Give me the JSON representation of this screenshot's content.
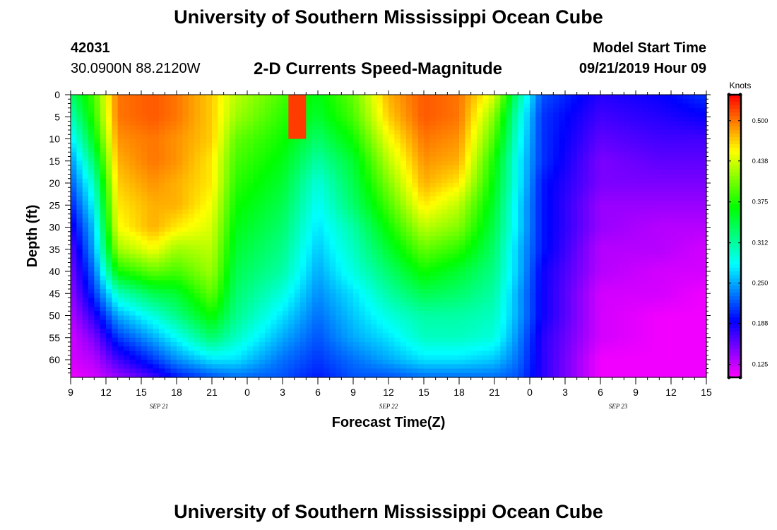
{
  "header": {
    "title": "University of Southern Mississippi Ocean Cube",
    "station_id": "42031",
    "location": "30.0900N 88.2120W",
    "plot_title": "2-D Currents Speed-Magnitude",
    "model_label": "Model Start Time",
    "model_time": "09/21/2019 Hour 09"
  },
  "footer": {
    "title": "University of Southern Mississippi Ocean Cube"
  },
  "chart_data": {
    "type": "heatmap",
    "title": "2-D Currents Speed-Magnitude",
    "xlabel": "Forecast Time(Z)",
    "ylabel": "Depth (ft)",
    "x_ticks": [
      "9",
      "12",
      "15",
      "18",
      "21",
      "0",
      "3",
      "6",
      "9",
      "12",
      "15",
      "18",
      "21",
      "0",
      "3",
      "6",
      "9",
      "12",
      "15"
    ],
    "x_range_hours": [
      0,
      54
    ],
    "date_labels": [
      {
        "text": "SEP 21",
        "hour": 7.5
      },
      {
        "text": "SEP 22",
        "hour": 27
      },
      {
        "text": "SEP 23",
        "hour": 46.5
      }
    ],
    "y_ticks": [
      "0",
      "5",
      "10",
      "15",
      "20",
      "25",
      "30",
      "35",
      "40",
      "45",
      "50",
      "55",
      "60"
    ],
    "y_range_ft": [
      0,
      64
    ],
    "colorbar": {
      "label": "Knots",
      "ticks": [
        "0.500",
        "0.438",
        "0.375",
        "0.312",
        "0.250",
        "0.188",
        "0.125"
      ],
      "tick_values": [
        0.5,
        0.438,
        0.375,
        0.312,
        0.25,
        0.188,
        0.125
      ],
      "range": [
        0.105,
        0.54
      ]
    },
    "surface_speed_by_hour": [
      {
        "hour": 0,
        "knots": 0.33
      },
      {
        "hour": 2,
        "knots": 0.39
      },
      {
        "hour": 4,
        "knots": 0.51
      },
      {
        "hour": 6,
        "knots": 0.51
      },
      {
        "hour": 8,
        "knots": 0.5
      },
      {
        "hour": 10,
        "knots": 0.49
      },
      {
        "hour": 12,
        "knots": 0.47
      },
      {
        "hour": 14,
        "knots": 0.43
      },
      {
        "hour": 16,
        "knots": 0.41
      },
      {
        "hour": 18,
        "knots": 0.39
      },
      {
        "hour": 19.5,
        "knots": 0.52
      },
      {
        "hour": 21,
        "knots": 0.34
      },
      {
        "hour": 24,
        "knots": 0.4
      },
      {
        "hour": 27,
        "knots": 0.49
      },
      {
        "hour": 30,
        "knots": 0.51
      },
      {
        "hour": 33,
        "knots": 0.49
      },
      {
        "hour": 36,
        "knots": 0.41
      },
      {
        "hour": 38,
        "knots": 0.31
      },
      {
        "hour": 40,
        "knots": 0.22
      },
      {
        "hour": 45,
        "knots": 0.18
      },
      {
        "hour": 54,
        "knots": 0.2
      }
    ],
    "profile_anchors": [
      {
        "hour": 0,
        "speeds": [
          0.33,
          0.3,
          0.27,
          0.24,
          0.22,
          0.2,
          0.18,
          0.16,
          0.15,
          0.14,
          0.13,
          0.12,
          0.12,
          0.11
        ]
      },
      {
        "hour": 2,
        "speeds": [
          0.39,
          0.38,
          0.36,
          0.33,
          0.3,
          0.28,
          0.26,
          0.25,
          0.23,
          0.21,
          0.18,
          0.15,
          0.13,
          0.12
        ]
      },
      {
        "hour": 4,
        "speeds": [
          0.5,
          0.5,
          0.49,
          0.48,
          0.47,
          0.46,
          0.45,
          0.42,
          0.37,
          0.3,
          0.25,
          0.21,
          0.17,
          0.14
        ]
      },
      {
        "hour": 7,
        "speeds": [
          0.51,
          0.51,
          0.5,
          0.5,
          0.49,
          0.48,
          0.48,
          0.45,
          0.4,
          0.34,
          0.29,
          0.25,
          0.21,
          0.17
        ]
      },
      {
        "hour": 9,
        "speeds": [
          0.5,
          0.5,
          0.49,
          0.49,
          0.48,
          0.48,
          0.46,
          0.42,
          0.39,
          0.35,
          0.32,
          0.28,
          0.24,
          0.2
        ]
      },
      {
        "hour": 12,
        "speeds": [
          0.47,
          0.47,
          0.47,
          0.46,
          0.46,
          0.45,
          0.44,
          0.43,
          0.42,
          0.4,
          0.37,
          0.33,
          0.27,
          0.22
        ]
      },
      {
        "hour": 14,
        "speeds": [
          0.43,
          0.42,
          0.4,
          0.39,
          0.38,
          0.37,
          0.36,
          0.35,
          0.34,
          0.33,
          0.32,
          0.3,
          0.27,
          0.23
        ]
      },
      {
        "hour": 18,
        "speeds": [
          0.39,
          0.38,
          0.37,
          0.36,
          0.35,
          0.34,
          0.33,
          0.32,
          0.31,
          0.29,
          0.27,
          0.25,
          0.23,
          0.22
        ]
      },
      {
        "hour": 21,
        "speeds": [
          0.36,
          0.35,
          0.33,
          0.31,
          0.29,
          0.28,
          0.27,
          0.26,
          0.25,
          0.24,
          0.23,
          0.22,
          0.21,
          0.2
        ]
      },
      {
        "hour": 24,
        "speeds": [
          0.4,
          0.39,
          0.37,
          0.35,
          0.34,
          0.33,
          0.31,
          0.3,
          0.29,
          0.27,
          0.26,
          0.25,
          0.23,
          0.22
        ]
      },
      {
        "hour": 27,
        "speeds": [
          0.48,
          0.47,
          0.45,
          0.43,
          0.41,
          0.39,
          0.37,
          0.35,
          0.33,
          0.31,
          0.29,
          0.27,
          0.25,
          0.22
        ]
      },
      {
        "hour": 30,
        "speeds": [
          0.51,
          0.51,
          0.5,
          0.49,
          0.48,
          0.46,
          0.43,
          0.4,
          0.37,
          0.34,
          0.31,
          0.3,
          0.27,
          0.23
        ]
      },
      {
        "hour": 33,
        "speeds": [
          0.5,
          0.5,
          0.49,
          0.48,
          0.46,
          0.43,
          0.41,
          0.38,
          0.35,
          0.33,
          0.31,
          0.3,
          0.27,
          0.23
        ]
      },
      {
        "hour": 36,
        "speeds": [
          0.44,
          0.41,
          0.39,
          0.37,
          0.36,
          0.35,
          0.34,
          0.33,
          0.32,
          0.31,
          0.3,
          0.29,
          0.26,
          0.23
        ]
      },
      {
        "hour": 38,
        "speeds": [
          0.32,
          0.3,
          0.29,
          0.28,
          0.28,
          0.27,
          0.27,
          0.26,
          0.26,
          0.25,
          0.25,
          0.24,
          0.23,
          0.22
        ]
      },
      {
        "hour": 40,
        "speeds": [
          0.22,
          0.21,
          0.21,
          0.21,
          0.2,
          0.2,
          0.2,
          0.2,
          0.19,
          0.19,
          0.19,
          0.18,
          0.18,
          0.18
        ]
      },
      {
        "hour": 45,
        "speeds": [
          0.18,
          0.17,
          0.16,
          0.15,
          0.15,
          0.14,
          0.14,
          0.13,
          0.13,
          0.12,
          0.12,
          0.12,
          0.11,
          0.11
        ]
      },
      {
        "hour": 50,
        "speeds": [
          0.19,
          0.18,
          0.17,
          0.16,
          0.15,
          0.14,
          0.13,
          0.13,
          0.12,
          0.12,
          0.11,
          0.11,
          0.11,
          0.11
        ]
      },
      {
        "hour": 54,
        "speeds": [
          0.21,
          0.19,
          0.17,
          0.16,
          0.15,
          0.14,
          0.13,
          0.12,
          0.12,
          0.11,
          0.11,
          0.11,
          0.11,
          0.11
        ]
      }
    ],
    "profile_depths_ft": [
      0,
      5,
      10,
      15,
      20,
      25,
      30,
      35,
      40,
      45,
      50,
      55,
      60,
      64
    ],
    "surface_jet": {
      "hour_start": 18.5,
      "hour_end": 20,
      "depth_ft_max": 10,
      "knots": 0.52
    }
  }
}
